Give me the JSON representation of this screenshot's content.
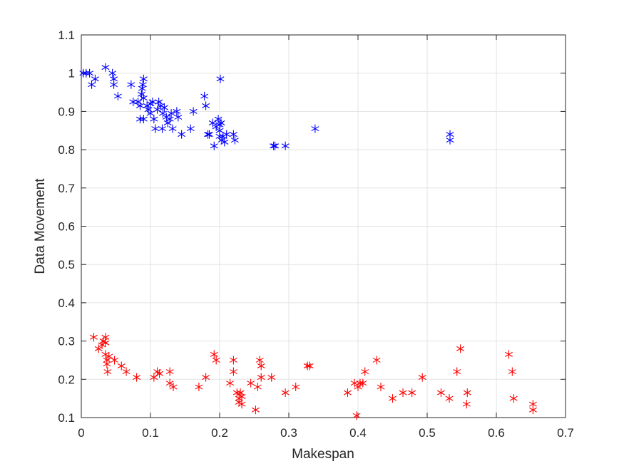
{
  "chart_data": {
    "type": "scatter",
    "title": "",
    "xlabel": "Makespan",
    "ylabel": "Data Movement",
    "xlim": [
      0,
      0.7
    ],
    "ylim": [
      0.1,
      1.1
    ],
    "xticks": [
      0,
      0.1,
      0.2,
      0.3,
      0.4,
      0.5,
      0.6,
      0.7
    ],
    "yticks": [
      0.1,
      0.2,
      0.3,
      0.4,
      0.5,
      0.6,
      0.7,
      0.8,
      0.9,
      1,
      1.1
    ],
    "xtick_labels": [
      "0",
      "0.1",
      "0.2",
      "0.3",
      "0.4",
      "0.5",
      "0.6",
      "0.7"
    ],
    "ytick_labels": [
      "0.1",
      "0.2",
      "0.3",
      "0.4",
      "0.5",
      "0.6",
      "0.7",
      "0.8",
      "0.9",
      "1",
      "1.1"
    ],
    "grid": true,
    "marker": "asterisk",
    "series": [
      {
        "color": "#0000ff",
        "points": [
          [
            0.003,
            1.0
          ],
          [
            0.007,
            1.0
          ],
          [
            0.012,
            1.0
          ],
          [
            0.015,
            0.97
          ],
          [
            0.02,
            0.985
          ],
          [
            0.035,
            1.015
          ],
          [
            0.045,
            1.0
          ],
          [
            0.047,
            0.985
          ],
          [
            0.047,
            0.97
          ],
          [
            0.053,
            0.94
          ],
          [
            0.072,
            0.97
          ],
          [
            0.075,
            0.925
          ],
          [
            0.082,
            0.925
          ],
          [
            0.085,
            0.915
          ],
          [
            0.085,
            0.88
          ],
          [
            0.087,
            0.945
          ],
          [
            0.088,
            0.96
          ],
          [
            0.089,
            0.97
          ],
          [
            0.09,
            0.985
          ],
          [
            0.09,
            0.935
          ],
          [
            0.09,
            0.88
          ],
          [
            0.095,
            0.915
          ],
          [
            0.097,
            0.905
          ],
          [
            0.1,
            0.895
          ],
          [
            0.1,
            0.92
          ],
          [
            0.103,
            0.925
          ],
          [
            0.105,
            0.88
          ],
          [
            0.107,
            0.855
          ],
          [
            0.11,
            0.905
          ],
          [
            0.112,
            0.925
          ],
          [
            0.115,
            0.915
          ],
          [
            0.117,
            0.855
          ],
          [
            0.118,
            0.895
          ],
          [
            0.12,
            0.91
          ],
          [
            0.123,
            0.885
          ],
          [
            0.125,
            0.87
          ],
          [
            0.128,
            0.88
          ],
          [
            0.13,
            0.895
          ],
          [
            0.132,
            0.855
          ],
          [
            0.138,
            0.9
          ],
          [
            0.14,
            0.885
          ],
          [
            0.145,
            0.84
          ],
          [
            0.158,
            0.855
          ],
          [
            0.162,
            0.9
          ],
          [
            0.178,
            0.94
          ],
          [
            0.18,
            0.915
          ],
          [
            0.183,
            0.84
          ],
          [
            0.185,
            0.84
          ],
          [
            0.19,
            0.87
          ],
          [
            0.192,
            0.81
          ],
          [
            0.195,
            0.86
          ],
          [
            0.198,
            0.88
          ],
          [
            0.2,
            0.865
          ],
          [
            0.2,
            0.85
          ],
          [
            0.2,
            0.835
          ],
          [
            0.201,
            0.985
          ],
          [
            0.202,
            0.87
          ],
          [
            0.203,
            0.825
          ],
          [
            0.205,
            0.835
          ],
          [
            0.207,
            0.82
          ],
          [
            0.21,
            0.84
          ],
          [
            0.22,
            0.84
          ],
          [
            0.222,
            0.825
          ],
          [
            0.278,
            0.81
          ],
          [
            0.28,
            0.81
          ],
          [
            0.295,
            0.81
          ],
          [
            0.338,
            0.855
          ],
          [
            0.533,
            0.84
          ],
          [
            0.533,
            0.825
          ]
        ]
      },
      {
        "color": "#ff0000",
        "points": [
          [
            0.018,
            0.31
          ],
          [
            0.025,
            0.28
          ],
          [
            0.03,
            0.29
          ],
          [
            0.032,
            0.3
          ],
          [
            0.035,
            0.31
          ],
          [
            0.035,
            0.295
          ],
          [
            0.035,
            0.265
          ],
          [
            0.037,
            0.25
          ],
          [
            0.037,
            0.24
          ],
          [
            0.038,
            0.22
          ],
          [
            0.04,
            0.26
          ],
          [
            0.048,
            0.25
          ],
          [
            0.058,
            0.235
          ],
          [
            0.065,
            0.22
          ],
          [
            0.08,
            0.205
          ],
          [
            0.105,
            0.205
          ],
          [
            0.11,
            0.22
          ],
          [
            0.113,
            0.215
          ],
          [
            0.128,
            0.22
          ],
          [
            0.128,
            0.19
          ],
          [
            0.133,
            0.18
          ],
          [
            0.17,
            0.18
          ],
          [
            0.18,
            0.205
          ],
          [
            0.192,
            0.265
          ],
          [
            0.195,
            0.25
          ],
          [
            0.215,
            0.19
          ],
          [
            0.22,
            0.25
          ],
          [
            0.22,
            0.22
          ],
          [
            0.225,
            0.165
          ],
          [
            0.228,
            0.15
          ],
          [
            0.228,
            0.14
          ],
          [
            0.23,
            0.165
          ],
          [
            0.232,
            0.155
          ],
          [
            0.232,
            0.135
          ],
          [
            0.245,
            0.19
          ],
          [
            0.252,
            0.12
          ],
          [
            0.255,
            0.18
          ],
          [
            0.258,
            0.25
          ],
          [
            0.26,
            0.235
          ],
          [
            0.26,
            0.205
          ],
          [
            0.275,
            0.205
          ],
          [
            0.295,
            0.165
          ],
          [
            0.31,
            0.18
          ],
          [
            0.327,
            0.235
          ],
          [
            0.33,
            0.235
          ],
          [
            0.385,
            0.165
          ],
          [
            0.395,
            0.19
          ],
          [
            0.398,
            0.105
          ],
          [
            0.4,
            0.18
          ],
          [
            0.403,
            0.19
          ],
          [
            0.407,
            0.19
          ],
          [
            0.41,
            0.22
          ],
          [
            0.427,
            0.25
          ],
          [
            0.433,
            0.18
          ],
          [
            0.45,
            0.15
          ],
          [
            0.465,
            0.165
          ],
          [
            0.478,
            0.165
          ],
          [
            0.493,
            0.205
          ],
          [
            0.52,
            0.165
          ],
          [
            0.532,
            0.15
          ],
          [
            0.543,
            0.22
          ],
          [
            0.548,
            0.28
          ],
          [
            0.557,
            0.135
          ],
          [
            0.558,
            0.165
          ],
          [
            0.618,
            0.265
          ],
          [
            0.623,
            0.22
          ],
          [
            0.625,
            0.15
          ],
          [
            0.653,
            0.135
          ],
          [
            0.653,
            0.12
          ]
        ]
      }
    ]
  }
}
